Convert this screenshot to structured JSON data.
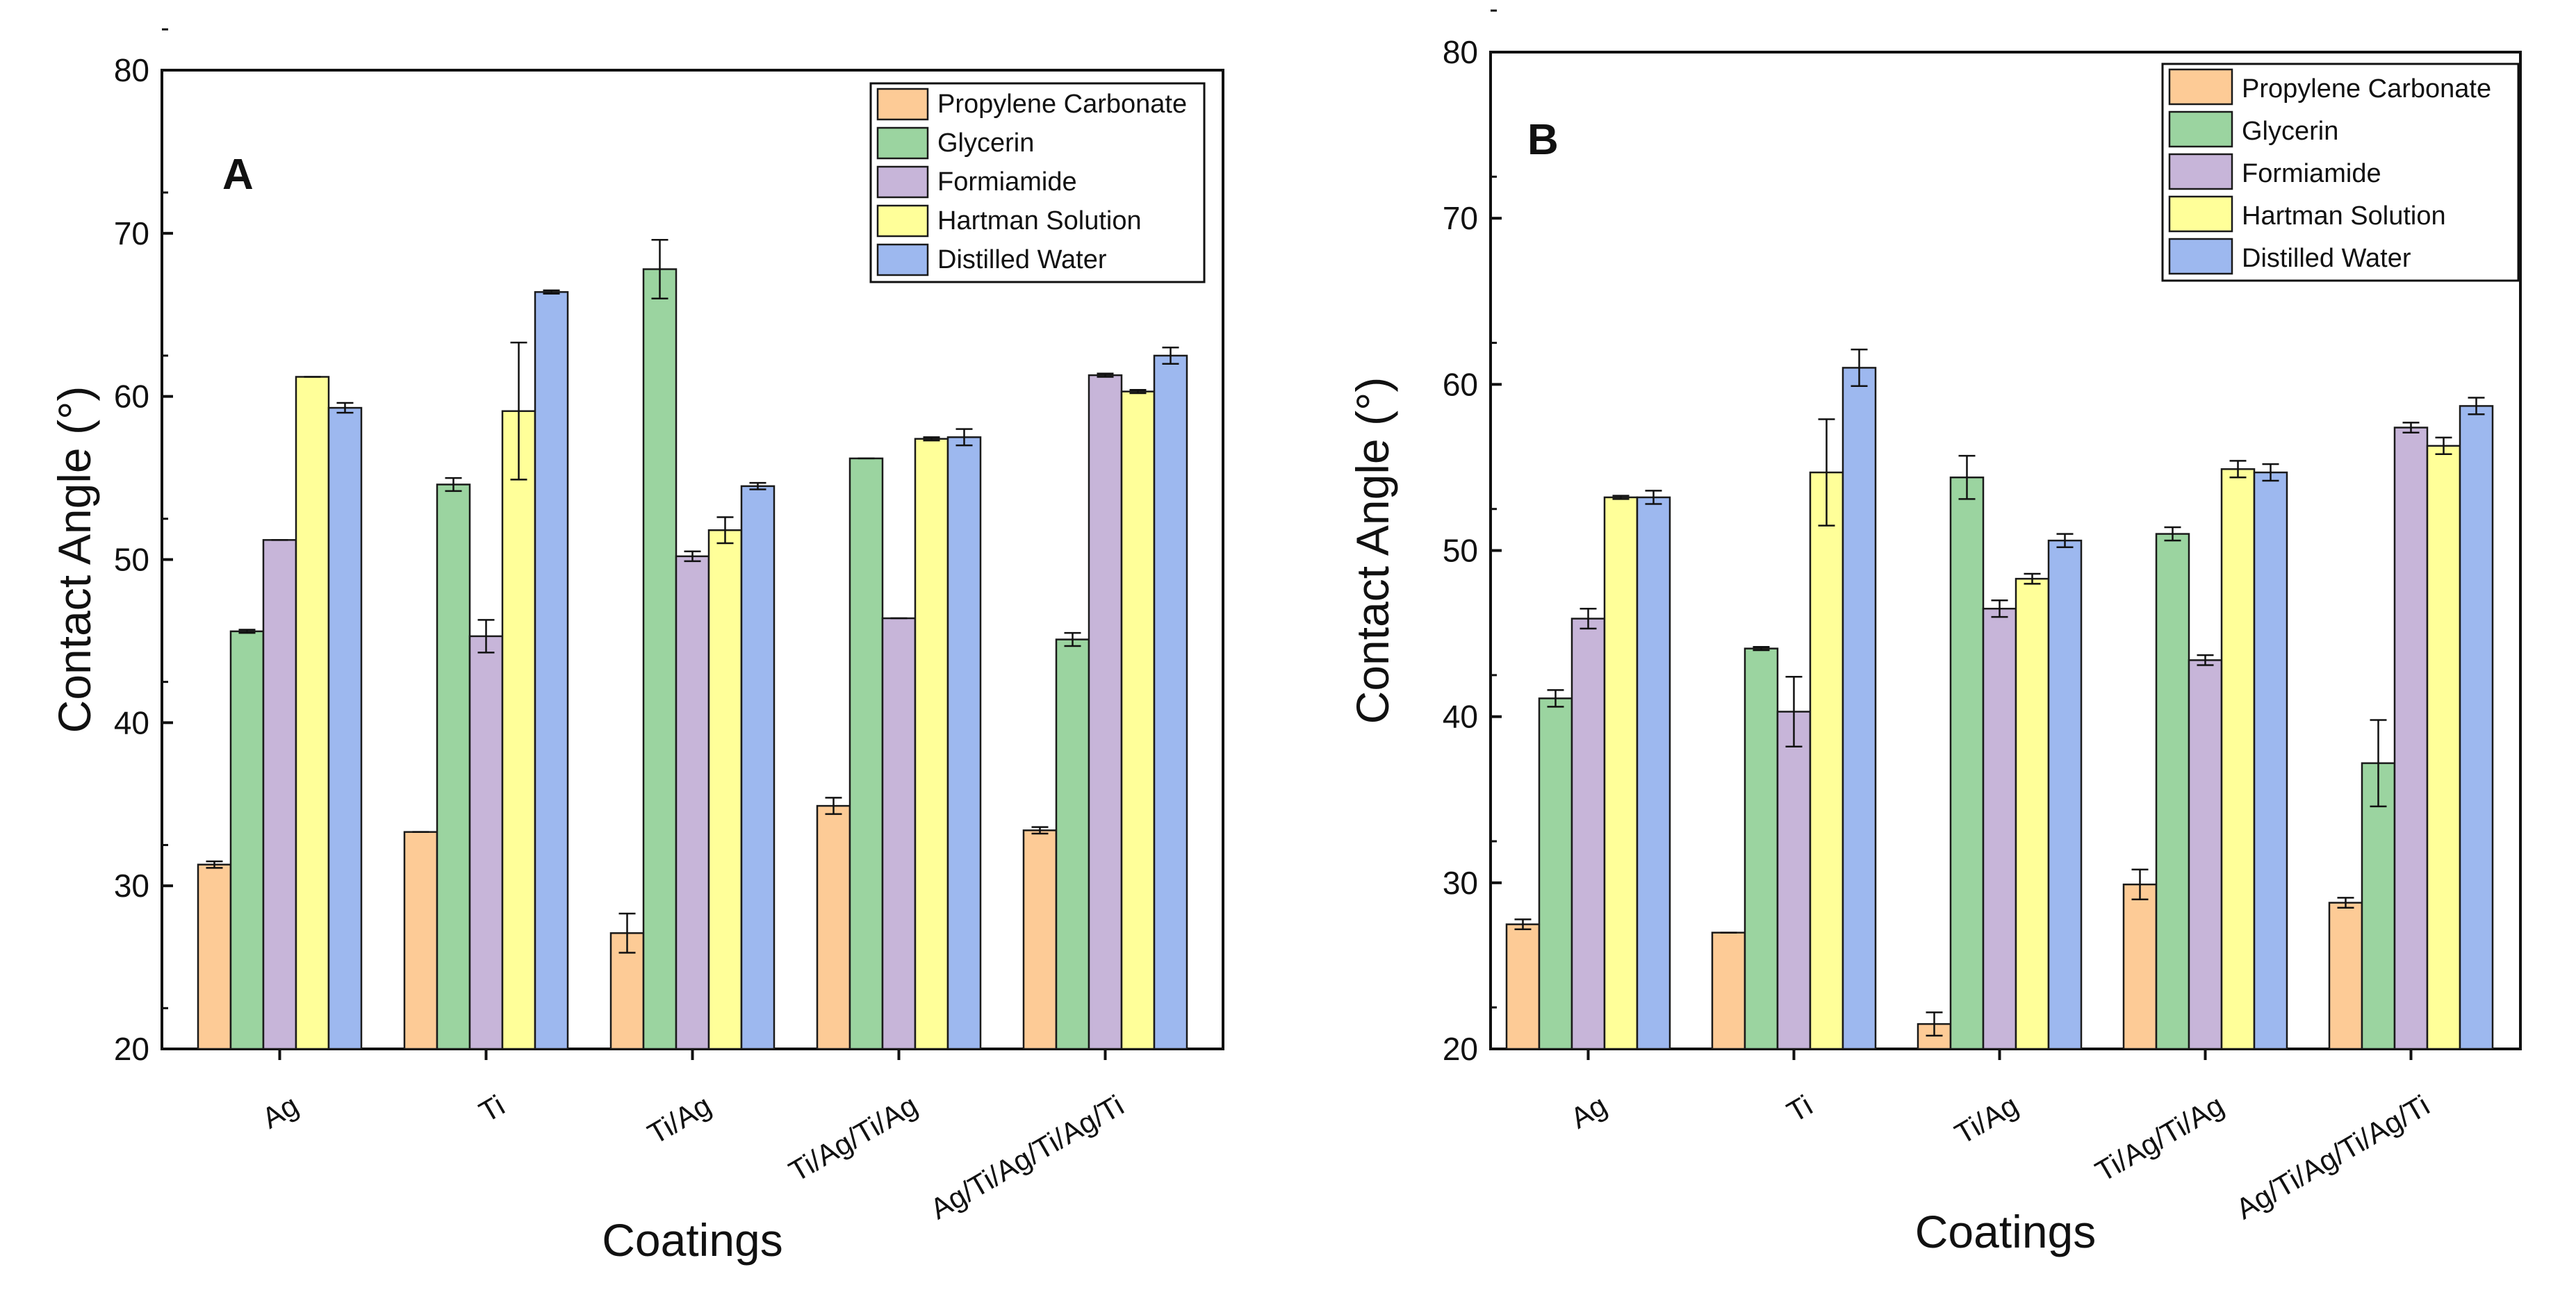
{
  "chart_data": [
    {
      "type": "bar",
      "panel": "A",
      "xlabel": "Coatings",
      "ylabel": "Contact Angle (°)",
      "ylim": [
        20,
        80
      ],
      "yticks": [
        "20",
        "30",
        "40",
        "50",
        "60",
        "70",
        "80"
      ],
      "categories": [
        "Ag",
        "Ti",
        "Ti/Ag",
        "Ti/Ag/Ti/Ag",
        "Ag/Ti/Ag/Ti/Ag/Ti"
      ],
      "legend_position": "top-right",
      "series": [
        {
          "name": "Propylene Carbonate",
          "color": "#FDCB96",
          "values": [
            31.3,
            33.3,
            27.1,
            34.9,
            33.4
          ],
          "errors": [
            0.2,
            0.0,
            1.2,
            0.5,
            0.2
          ]
        },
        {
          "name": "Glycerin",
          "color": "#9BD4A0",
          "values": [
            45.6,
            54.6,
            67.8,
            56.2,
            45.1
          ],
          "errors": [
            0.1,
            0.4,
            1.8,
            0.0,
            0.4
          ]
        },
        {
          "name": "Formiamide",
          "color": "#C7B5D9",
          "values": [
            51.2,
            45.3,
            50.2,
            46.4,
            61.3
          ],
          "errors": [
            0.0,
            1.0,
            0.3,
            0.0,
            0.1
          ]
        },
        {
          "name": "Hartman Solution",
          "color": "#FFFF99",
          "values": [
            61.2,
            59.1,
            51.8,
            57.4,
            60.3
          ],
          "errors": [
            0.0,
            4.2,
            0.8,
            0.1,
            0.1
          ]
        },
        {
          "name": "Distilled Water",
          "color": "#9DB8EF",
          "values": [
            59.3,
            66.4,
            54.5,
            57.5,
            62.5
          ],
          "errors": [
            0.3,
            0.1,
            0.2,
            0.5,
            0.5
          ]
        }
      ]
    },
    {
      "type": "bar",
      "panel": "B",
      "xlabel": "Coatings",
      "ylabel": "Contact Angle (°)",
      "ylim": [
        20,
        80
      ],
      "yticks": [
        "20",
        "30",
        "40",
        "50",
        "60",
        "70",
        "80"
      ],
      "categories": [
        "Ag",
        "Ti",
        "Ti/Ag",
        "Ti/Ag/Ti/Ag",
        "Ag/Ti/Ag/Ti/Ag/Ti"
      ],
      "legend_position": "top-right",
      "series": [
        {
          "name": "Propylene Carbonate",
          "color": "#FDCB96",
          "values": [
            27.5,
            27.0,
            21.5,
            29.9,
            28.8
          ],
          "errors": [
            0.3,
            0.0,
            0.7,
            0.9,
            0.3
          ]
        },
        {
          "name": "Glycerin",
          "color": "#9BD4A0",
          "values": [
            41.1,
            44.1,
            54.4,
            51.0,
            37.2
          ],
          "errors": [
            0.5,
            0.1,
            1.3,
            0.4,
            2.6
          ]
        },
        {
          "name": "Formiamide",
          "color": "#C7B5D9",
          "values": [
            45.9,
            40.3,
            46.5,
            43.4,
            57.4
          ],
          "errors": [
            0.6,
            2.1,
            0.5,
            0.3,
            0.3
          ]
        },
        {
          "name": "Hartman Solution",
          "color": "#FFFF99",
          "values": [
            53.2,
            54.7,
            48.3,
            54.9,
            56.3
          ],
          "errors": [
            0.1,
            3.2,
            0.3,
            0.5,
            0.5
          ]
        },
        {
          "name": "Distilled Water",
          "color": "#9DB8EF",
          "values": [
            53.2,
            61.0,
            50.6,
            54.7,
            58.7
          ],
          "errors": [
            0.4,
            1.1,
            0.4,
            0.5,
            0.5
          ]
        }
      ]
    }
  ]
}
